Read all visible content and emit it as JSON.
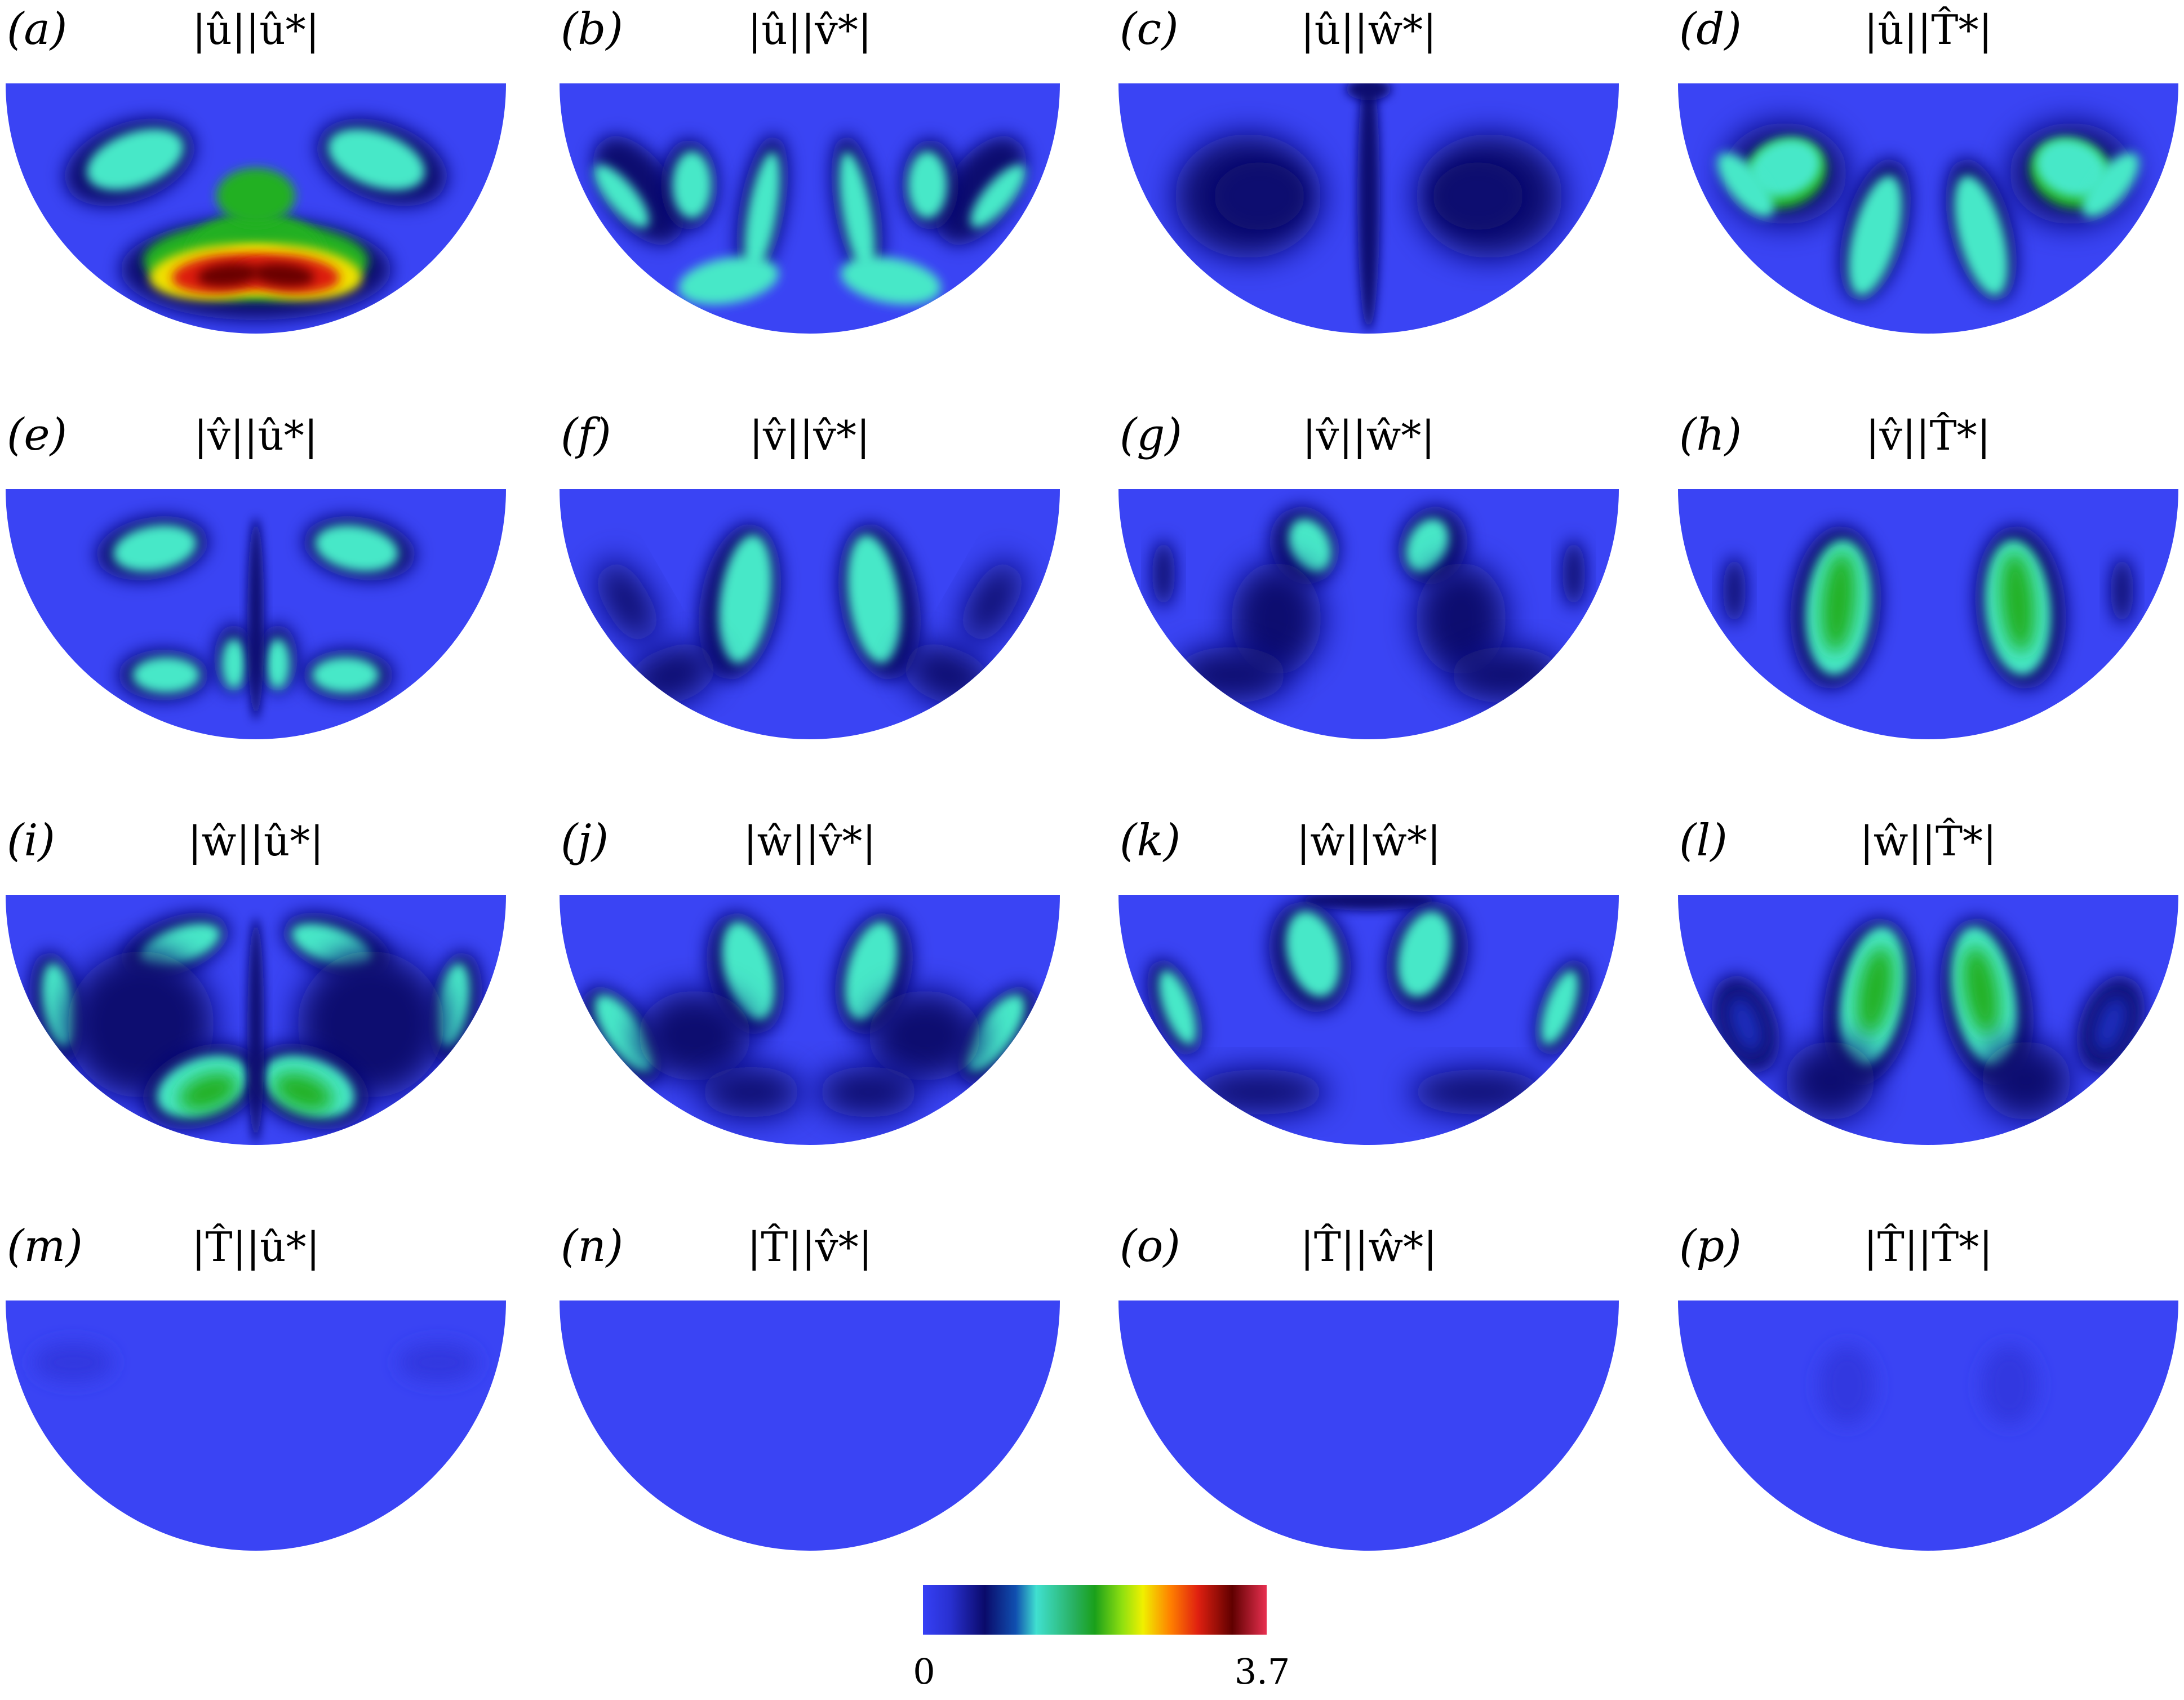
{
  "panels": [
    {
      "id": "a",
      "label": "(a)",
      "title": "|û||û*|"
    },
    {
      "id": "b",
      "label": "(b)",
      "title": "|û||v̂*|"
    },
    {
      "id": "c",
      "label": "(c)",
      "title": "|û||ŵ*|"
    },
    {
      "id": "d",
      "label": "(d)",
      "title": "|û||T̂*|"
    },
    {
      "id": "e",
      "label": "(e)",
      "title": "|v̂||û*|"
    },
    {
      "id": "f",
      "label": "(f)",
      "title": "|v̂||v̂*|"
    },
    {
      "id": "g",
      "label": "(g)",
      "title": "|v̂||ŵ*|"
    },
    {
      "id": "h",
      "label": "(h)",
      "title": "|v̂||T̂*|"
    },
    {
      "id": "i",
      "label": "(i)",
      "title": "|ŵ||û*|"
    },
    {
      "id": "j",
      "label": "(j)",
      "title": "|ŵ||v̂*|"
    },
    {
      "id": "k",
      "label": "(k)",
      "title": "|ŵ||ŵ*|"
    },
    {
      "id": "l",
      "label": "(l)",
      "title": "|ŵ||T̂*|"
    },
    {
      "id": "m",
      "label": "(m)",
      "title": "|T̂||û*|"
    },
    {
      "id": "n",
      "label": "(n)",
      "title": "|T̂||v̂*|"
    },
    {
      "id": "o",
      "label": "(o)",
      "title": "|T̂||ŵ*|"
    },
    {
      "id": "p",
      "label": "(p)",
      "title": "|T̂||T̂*|"
    }
  ],
  "colorbar": {
    "min_label": "0",
    "max_label": "3.7",
    "stops": [
      "#3640f5",
      "#0a0a6a",
      "#40e0d0",
      "#1aa01a",
      "#f0f000",
      "#ff8000",
      "#cc1010",
      "#600000",
      "#e83050"
    ]
  },
  "colors": {
    "background_field": "#3a44f4",
    "dark": "#0b0c70",
    "cyan": "#46e8c8",
    "green": "#20b020",
    "yellow": "#f0e000",
    "red": "#dd1a10",
    "darkred": "#6a0000"
  }
}
